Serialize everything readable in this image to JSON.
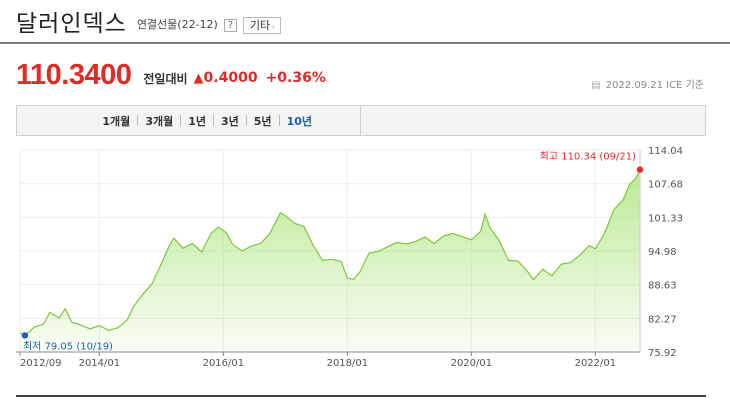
{
  "header": {
    "title": "달러인덱스",
    "subtitle": "연결선물(22-12)",
    "help_label": "?",
    "etc_label": "기타",
    "etc_arrow": "›"
  },
  "quote": {
    "price": "110.3400",
    "change_label": "전일대비",
    "change_arrow": "▲",
    "change_value": "0.4000",
    "change_percent": "+0.36%",
    "calendar_icon": "calendar-icon",
    "date": "2022.09.21",
    "source": "ICE 기준",
    "up_color": "#e02b27"
  },
  "periods": [
    {
      "label": "1개월",
      "active": false
    },
    {
      "label": "3개월",
      "active": false
    },
    {
      "label": "1년",
      "active": false
    },
    {
      "label": "3년",
      "active": false
    },
    {
      "label": "5년",
      "active": false
    },
    {
      "label": "10년",
      "active": true
    }
  ],
  "chart_data": {
    "type": "area",
    "title": "",
    "xlabel": "",
    "ylabel": "",
    "x_ticks": [
      "2012/09",
      "2014/01",
      "2016/01",
      "2018/01",
      "2020/01",
      "2022/01"
    ],
    "y_ticks": [
      "114.04",
      "107.68",
      "101.33",
      "94.98",
      "88.63",
      "82.27",
      "75.92"
    ],
    "ylim": [
      75.92,
      114.04
    ],
    "xlim": [
      2012.72,
      2022.72
    ],
    "grid": true,
    "line_color": "#7ec83a",
    "fill_color": "#b7e88e",
    "max_label": "최고 110.34 (09/21)",
    "min_label": "최저 79.05 (10/19)",
    "max_point": {
      "x": 2022.72,
      "y": 110.34
    },
    "min_point": {
      "x": 2012.8,
      "y": 79.05
    },
    "series": [
      {
        "x": [
          2012.72,
          2012.8,
          2012.95,
          2013.1,
          2013.2,
          2013.35,
          2013.45,
          2013.55,
          2013.7,
          2013.85,
          2014.0,
          2014.15,
          2014.3,
          2014.45,
          2014.55,
          2014.7,
          2014.85,
          2015.0,
          2015.12,
          2015.2,
          2015.35,
          2015.5,
          2015.65,
          2015.8,
          2015.92,
          2016.05,
          2016.15,
          2016.3,
          2016.45,
          2016.6,
          2016.75,
          2016.92,
          2017.0,
          2017.15,
          2017.3,
          2017.45,
          2017.6,
          2017.75,
          2017.9,
          2018.0,
          2018.1,
          2018.2,
          2018.35,
          2018.5,
          2018.65,
          2018.8,
          2018.95,
          2019.1,
          2019.25,
          2019.4,
          2019.55,
          2019.7,
          2019.85,
          2020.0,
          2020.15,
          2020.22,
          2020.3,
          2020.45,
          2020.6,
          2020.75,
          2020.9,
          2021.0,
          2021.15,
          2021.3,
          2021.45,
          2021.6,
          2021.75,
          2021.9,
          2022.0,
          2022.15,
          2022.3,
          2022.45,
          2022.55,
          2022.65,
          2022.72
        ],
        "y": [
          79.5,
          79.05,
          80.6,
          81.2,
          83.4,
          82.3,
          84.1,
          81.6,
          81.0,
          80.3,
          80.9,
          80.0,
          80.5,
          82.0,
          84.5,
          86.8,
          88.8,
          92.6,
          95.8,
          97.4,
          95.5,
          96.4,
          94.8,
          98.3,
          99.5,
          98.4,
          96.2,
          95.0,
          95.9,
          96.4,
          98.3,
          102.2,
          101.6,
          100.2,
          99.6,
          96.0,
          93.2,
          93.4,
          93.0,
          89.9,
          89.6,
          91.0,
          94.6,
          94.9,
          95.8,
          96.6,
          96.3,
          96.8,
          97.6,
          96.4,
          97.8,
          98.3,
          97.7,
          97.1,
          98.7,
          101.9,
          99.4,
          96.9,
          93.2,
          93.1,
          91.2,
          89.6,
          91.5,
          90.3,
          92.5,
          92.8,
          94.2,
          96.0,
          95.4,
          98.4,
          102.8,
          104.7,
          107.5,
          108.7,
          110.34
        ]
      }
    ]
  }
}
